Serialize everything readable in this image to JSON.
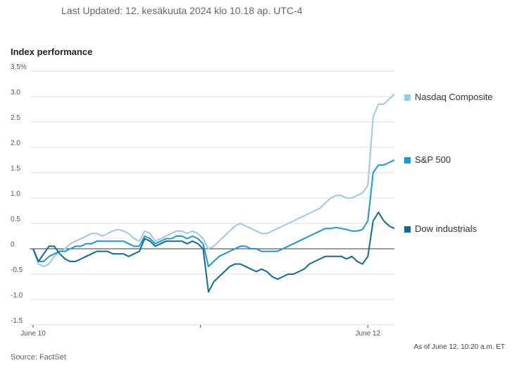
{
  "header": {
    "last_updated": "Last Updated: 12. kesäkuuta 2024 klo 10.18 ap. UTC-4"
  },
  "footer": {
    "source": "Source: FactSet",
    "as_of": "As of June 12, 10:20 a.m. ET"
  },
  "colors": {
    "nasdaq": "#9cc8e6",
    "sp500": "#1a97cf",
    "dow": "#0f6b96",
    "grid": "#dddddd",
    "zero_line": "#333333"
  },
  "chart_data": {
    "type": "line",
    "title": "Index performance",
    "ylim": [
      -1.5,
      3.5
    ],
    "y_ticks": [
      "3.5%",
      "3.0",
      "2.5",
      "2.0",
      "1.5",
      "1.0",
      "0.5",
      "0",
      "-0.5",
      "-1.0",
      "-1.5"
    ],
    "y_tick_values": [
      3.5,
      3.0,
      2.5,
      2.0,
      1.5,
      1.0,
      0.5,
      0,
      -0.5,
      -1.0,
      -1.5
    ],
    "x_ticks": [
      "June 10",
      "June 12"
    ],
    "x_tick_values": [
      0,
      63
    ],
    "xlim": [
      0,
      68
    ],
    "grid": true,
    "legend": "right",
    "series": [
      {
        "name": "Nasdaq Composite",
        "values": [
          0,
          -0.3,
          -0.35,
          -0.3,
          -0.15,
          -0.05,
          0,
          0.1,
          0.15,
          0.2,
          0.25,
          0.3,
          0.3,
          0.25,
          0.3,
          0.35,
          0.38,
          0.35,
          0.3,
          0.2,
          0.15,
          0.35,
          0.3,
          0.15,
          0.2,
          0.25,
          0.3,
          0.35,
          0.35,
          0.3,
          0.35,
          0.3,
          0.2,
          0,
          0.05,
          0.15,
          0.25,
          0.35,
          0.45,
          0.5,
          0.45,
          0.4,
          0.35,
          0.3,
          0.3,
          0.35,
          0.4,
          0.45,
          0.5,
          0.55,
          0.6,
          0.65,
          0.7,
          0.75,
          0.8,
          0.9,
          1.0,
          1.05,
          1.05,
          1.0,
          1.0,
          1.05,
          1.1,
          1.25,
          2.6,
          2.85,
          2.85,
          2.95,
          3.05
        ]
      },
      {
        "name": "S&P 500",
        "values": [
          0,
          -0.25,
          -0.25,
          -0.15,
          -0.1,
          -0.05,
          -0.05,
          0,
          0.05,
          0.05,
          0.1,
          0.1,
          0.15,
          0.15,
          0.15,
          0.15,
          0.15,
          0.15,
          0.1,
          0.05,
          0.05,
          0.25,
          0.2,
          0.1,
          0.15,
          0.2,
          0.2,
          0.25,
          0.25,
          0.2,
          0.25,
          0.2,
          0.1,
          -0.35,
          -0.25,
          -0.15,
          -0.1,
          -0.05,
          0,
          0.05,
          0.05,
          0,
          0,
          -0.05,
          -0.05,
          -0.05,
          -0.05,
          0,
          0.05,
          0.1,
          0.15,
          0.2,
          0.25,
          0.3,
          0.35,
          0.4,
          0.4,
          0.42,
          0.4,
          0.38,
          0.35,
          0.35,
          0.38,
          0.55,
          1.5,
          1.65,
          1.65,
          1.7,
          1.75
        ]
      },
      {
        "name": "Dow industrials",
        "values": [
          0,
          -0.25,
          -0.1,
          0.05,
          0.05,
          -0.1,
          -0.2,
          -0.25,
          -0.25,
          -0.2,
          -0.15,
          -0.1,
          -0.05,
          -0.05,
          -0.05,
          -0.1,
          -0.1,
          -0.1,
          -0.15,
          -0.1,
          -0.05,
          0.2,
          0.15,
          0.05,
          0.1,
          0.15,
          0.15,
          0.15,
          0.15,
          0.1,
          0.15,
          0.1,
          0,
          -0.85,
          -0.65,
          -0.55,
          -0.45,
          -0.35,
          -0.3,
          -0.3,
          -0.35,
          -0.4,
          -0.45,
          -0.4,
          -0.45,
          -0.55,
          -0.6,
          -0.55,
          -0.5,
          -0.5,
          -0.45,
          -0.4,
          -0.3,
          -0.25,
          -0.2,
          -0.15,
          -0.15,
          -0.15,
          -0.15,
          -0.2,
          -0.15,
          -0.25,
          -0.3,
          -0.15,
          0.55,
          0.72,
          0.55,
          0.45,
          0.4
        ]
      }
    ]
  }
}
